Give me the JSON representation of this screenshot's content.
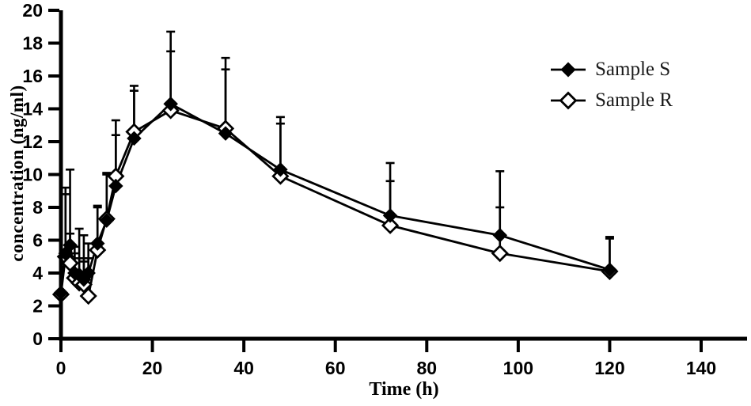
{
  "chart_data": {
    "type": "line",
    "title": "",
    "xlabel": "Time (h)",
    "ylabel": "concentration (ng/ml)",
    "xlim": [
      0,
      150
    ],
    "ylim": [
      0,
      20
    ],
    "x_ticks": [
      0,
      20,
      40,
      60,
      80,
      100,
      120,
      140
    ],
    "y_ticks": [
      0,
      2,
      4,
      6,
      8,
      10,
      12,
      14,
      16,
      18,
      20
    ],
    "grid": false,
    "legend_position": "top-right",
    "error_bars": "upper-only-with-caps",
    "x": [
      0,
      1,
      2,
      3,
      4,
      5,
      6,
      8,
      10,
      12,
      16,
      24,
      36,
      48,
      72,
      96,
      120
    ],
    "series": [
      {
        "name": "Sample S",
        "marker": "filled-diamond",
        "color": "#000000",
        "values": [
          2.8,
          5.2,
          5.7,
          4.0,
          3.9,
          3.6,
          4.0,
          5.8,
          7.2,
          9.3,
          12.2,
          14.3,
          12.5,
          10.3,
          7.5,
          6.3,
          4.2
        ],
        "errors_up": [
          0.3,
          4.0,
          4.6,
          1.6,
          2.8,
          2.7,
          1.8,
          2.2,
          2.9,
          4.0,
          3.2,
          4.4,
          4.6,
          3.2,
          3.2,
          3.9,
          2.0
        ]
      },
      {
        "name": "Sample R",
        "marker": "open-diamond",
        "color": "#000000",
        "values": [
          2.7,
          5.0,
          4.6,
          3.7,
          3.4,
          3.3,
          2.6,
          5.4,
          7.3,
          9.9,
          12.6,
          13.9,
          12.8,
          9.9,
          6.9,
          5.2,
          4.1
        ],
        "errors_up": [
          0.4,
          3.8,
          1.8,
          1.5,
          1.5,
          1.4,
          2.3,
          2.7,
          2.7,
          2.5,
          2.5,
          3.6,
          3.6,
          3.2,
          2.7,
          2.8,
          2.0
        ]
      }
    ],
    "colors": {
      "foreground": "#000000",
      "background": "#ffffff"
    }
  }
}
